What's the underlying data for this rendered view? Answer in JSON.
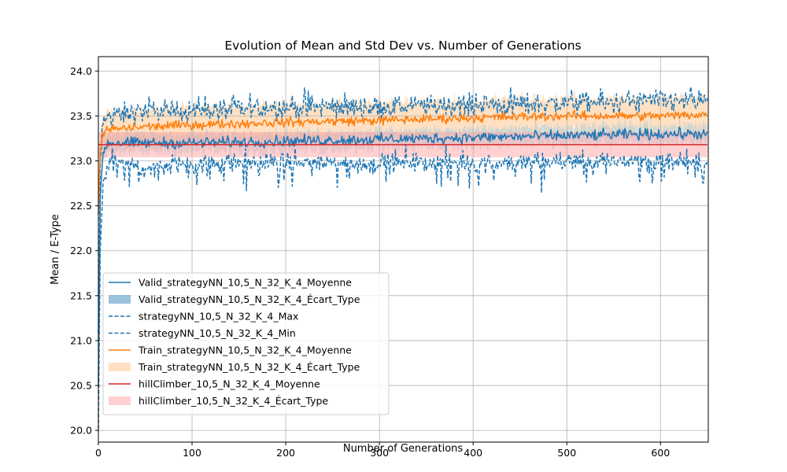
{
  "chart_data": {
    "type": "line",
    "title": "Evolution of Mean and Std Dev vs. Number of Generations",
    "xlabel": "Number of Generations",
    "ylabel": "Mean / E-Type",
    "xlim": [
      0,
      651
    ],
    "ylim": [
      19.87,
      24.16
    ],
    "xticks": [
      0,
      100,
      200,
      300,
      400,
      500,
      600
    ],
    "yticks": [
      20.0,
      20.5,
      21.0,
      21.5,
      22.0,
      22.5,
      23.0,
      23.5,
      24.0
    ],
    "ytick_labels": [
      "20.0",
      "20.5",
      "21.0",
      "21.5",
      "22.0",
      "22.5",
      "23.0",
      "23.5",
      "24.0"
    ],
    "grid": true,
    "legend_position": "lower-left",
    "legend": [
      {
        "label": "Valid_strategyNN_10,5_N_32_K_4_Moyenne",
        "kind": "line",
        "color": "#1f77b4",
        "dash": "solid"
      },
      {
        "label": "Valid_strategyNN_10,5_N_32_K_4_Écart_Type",
        "kind": "patch",
        "color": "#1f77b4"
      },
      {
        "label": "strategyNN_10,5_N_32_K_4_Max",
        "kind": "line",
        "color": "#1f77b4",
        "dash": "dashed"
      },
      {
        "label": "strategyNN_10,5_N_32_K_4_Min",
        "kind": "line",
        "color": "#1f77b4",
        "dash": "dashed"
      },
      {
        "label": "Train_strategyNN_10,5_N_32_K_4_Moyenne",
        "kind": "line",
        "color": "#ff7f0e",
        "dash": "solid"
      },
      {
        "label": "Train_strategyNN_10,5_N_32_K_4_Écart_Type",
        "kind": "patch",
        "color": "#ffbb78"
      },
      {
        "label": "hillClimber_10,5_N_32_K_4_Moyenne",
        "kind": "line",
        "color": "#d62728",
        "dash": "solid"
      },
      {
        "label": "hillClimber_10,5_N_32_K_4_Écart_Type",
        "kind": "patch",
        "color": "#ff9896"
      }
    ],
    "series": [
      {
        "name": "Valid_strategyNN_10,5_N_32_K_4_Moyenne",
        "x": [
          0,
          2,
          5,
          10,
          50,
          100,
          200,
          300,
          400,
          500,
          600,
          650
        ],
        "y": [
          20.5,
          22.6,
          23.1,
          23.2,
          23.2,
          23.2,
          23.22,
          23.24,
          23.26,
          23.28,
          23.3,
          23.3
        ]
      },
      {
        "name": "strategyNN_10,5_N_32_K_4_Max",
        "x": [
          0,
          2,
          5,
          10,
          50,
          100,
          200,
          300,
          400,
          500,
          600,
          650
        ],
        "y": [
          21.0,
          23.0,
          23.4,
          23.5,
          23.55,
          23.55,
          23.6,
          23.6,
          23.62,
          23.64,
          23.66,
          23.66
        ]
      },
      {
        "name": "strategyNN_10,5_N_32_K_4_Min",
        "x": [
          0,
          2,
          5,
          10,
          50,
          100,
          200,
          300,
          400,
          500,
          600,
          650
        ],
        "y": [
          20.0,
          22.0,
          22.8,
          22.95,
          22.95,
          22.97,
          22.98,
          22.98,
          22.98,
          22.99,
          23.0,
          23.0
        ]
      },
      {
        "name": "Train_strategyNN_10,5_N_32_K_4_Moyenne",
        "x": [
          0,
          2,
          5,
          10,
          50,
          100,
          200,
          300,
          400,
          500,
          600,
          650
        ],
        "y": [
          22.4,
          23.1,
          23.3,
          23.35,
          23.38,
          23.4,
          23.43,
          23.45,
          23.48,
          23.5,
          23.5,
          23.52
        ]
      },
      {
        "name": "hillClimber_10,5_N_32_K_4_Moyenne",
        "x": [
          0,
          650
        ],
        "y": [
          23.18,
          23.18
        ]
      }
    ],
    "bands": [
      {
        "name": "Valid_strategyNN_10,5_N_32_K_4_Écart_Type",
        "half_width": 0.1
      },
      {
        "name": "Train_strategyNN_10,5_N_32_K_4_Écart_Type",
        "half_width": 0.2
      },
      {
        "name": "hillClimber_10,5_N_32_K_4_Écart_Type",
        "half_width": 0.14
      }
    ]
  }
}
